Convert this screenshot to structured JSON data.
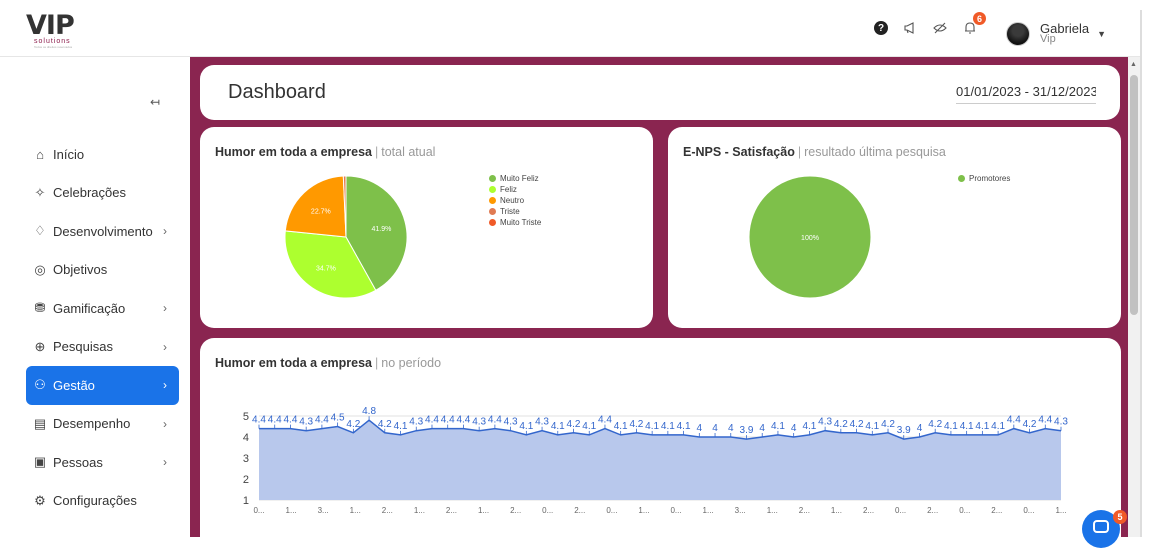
{
  "brand": {
    "logo_text": "VIP",
    "logo_sub": "solutions",
    "logo_tiny": "Todos os direitos reservados"
  },
  "topbar": {
    "icons": [
      "help-icon",
      "megaphone-icon",
      "eye-off-icon",
      "bell-icon"
    ],
    "help_glyph": "?",
    "notifications_count": "6",
    "user_name": "Gabriela",
    "user_sub": "Vip"
  },
  "sidebar": {
    "collapse_glyph": "↤",
    "items": [
      {
        "label": "Início",
        "icon": "home-icon",
        "glyph": "⌂",
        "chevron": ""
      },
      {
        "label": "Celebrações",
        "icon": "party-icon",
        "glyph": "✧",
        "chevron": ""
      },
      {
        "label": "Desenvolvimento",
        "icon": "handshake-icon",
        "glyph": "♢",
        "chevron": "›"
      },
      {
        "label": "Objetivos",
        "icon": "target-icon",
        "glyph": "◎",
        "chevron": ""
      },
      {
        "label": "Gamificação",
        "icon": "coins-icon",
        "glyph": "⛃",
        "chevron": "›"
      },
      {
        "label": "Pesquisas",
        "icon": "search-icon",
        "glyph": "⊕",
        "chevron": "›"
      },
      {
        "label": "Gestão",
        "icon": "people-icon",
        "glyph": "⚇",
        "chevron": "›",
        "active": true
      },
      {
        "label": "Desempenho",
        "icon": "clipboard-icon",
        "glyph": "▤",
        "chevron": "›"
      },
      {
        "label": "Pessoas",
        "icon": "id-card-icon",
        "glyph": "▣",
        "chevron": "›"
      },
      {
        "label": "Configurações",
        "icon": "gear-icon",
        "glyph": "⚙",
        "chevron": ""
      }
    ]
  },
  "header": {
    "title": "Dashboard",
    "date_range": "01/01/2023 - 31/12/2023"
  },
  "humor_card": {
    "title": "Humor em toda a empresa",
    "subtitle": "total atual"
  },
  "enps_card": {
    "title": "E-NPS - Satisfação",
    "subtitle": "resultado última pesquisa"
  },
  "period_card": {
    "title": "Humor em toda a empresa",
    "subtitle": "no período"
  },
  "chat": {
    "badge": "5"
  },
  "colors": {
    "brand": "#8a2550",
    "active": "#1a73e8",
    "muito_feliz": "#7ec04a",
    "feliz": "#adff2f",
    "neutro": "#ff9900",
    "triste": "#e07b53",
    "muito_triste": "#f05a28",
    "line": "#3366cc",
    "area": "#b8c8ec"
  },
  "chart_data": [
    {
      "type": "pie",
      "categories": [
        "Muito Feliz",
        "Feliz",
        "Neutro",
        "Triste",
        "Muito Triste"
      ],
      "values": [
        41.9,
        34.7,
        22.7,
        0.7,
        0
      ],
      "labels": [
        "41.9%",
        "34.7%",
        "22.7%",
        "",
        ""
      ],
      "legend": "right"
    },
    {
      "type": "pie",
      "categories": [
        "Promotores"
      ],
      "values": [
        100
      ],
      "labels": [
        "100%"
      ],
      "legend": "right"
    },
    {
      "type": "area",
      "ylim": [
        1,
        5
      ],
      "yticks": [
        "1",
        "2",
        "3",
        "4",
        "5"
      ],
      "x_tick_labels": [
        "0...",
        "1...",
        "3...",
        "1...",
        "2...",
        "1...",
        "2...",
        "1...",
        "2...",
        "0...",
        "2...",
        "0...",
        "1...",
        "0...",
        "1...",
        "3...",
        "1...",
        "2...",
        "1...",
        "2...",
        "0...",
        "2...",
        "0...",
        "2...",
        "0...",
        "1..."
      ],
      "values": [
        4.4,
        4.4,
        4.4,
        4.3,
        4.4,
        4.5,
        4.2,
        4.8,
        4.2,
        4.1,
        4.3,
        4.4,
        4.4,
        4.4,
        4.3,
        4.4,
        4.3,
        4.1,
        4.3,
        4.1,
        4.2,
        4.1,
        4.4,
        4.1,
        4.2,
        4.1,
        4.1,
        4.1,
        4.0,
        4.0,
        4.0,
        3.9,
        4.0,
        4.1,
        4.0,
        4.1,
        4.3,
        4.2,
        4.2,
        4.1,
        4.2,
        3.9,
        4.0,
        4.2,
        4.1,
        4.1,
        4.1,
        4.1,
        4.4,
        4.2,
        4.4,
        4.3
      ],
      "point_labels": [
        "4.4",
        "4.4",
        "4.4",
        "4.3",
        "4.4",
        "4.5",
        "4.2",
        "4.8",
        "4.2",
        "4.1",
        "4.3",
        "4.4",
        "4.4",
        "4.4",
        "4.3",
        "4.4",
        "4.3",
        "4.1",
        "4.3",
        "4.1",
        "4.2",
        "4.1",
        "4.4",
        "4.1",
        "4.2",
        "4.1",
        "4.1",
        "4.1",
        "4",
        "4",
        "4",
        "3.9",
        "4",
        "4.1",
        "4",
        "4.1",
        "4.3",
        "4.2",
        "4.2",
        "4.1",
        "4.2",
        "3.9",
        "4",
        "4.2",
        "4.1",
        "4.1",
        "4.1",
        "4.1",
        "4.4",
        "4.2",
        "4.4",
        "4.3"
      ]
    }
  ]
}
